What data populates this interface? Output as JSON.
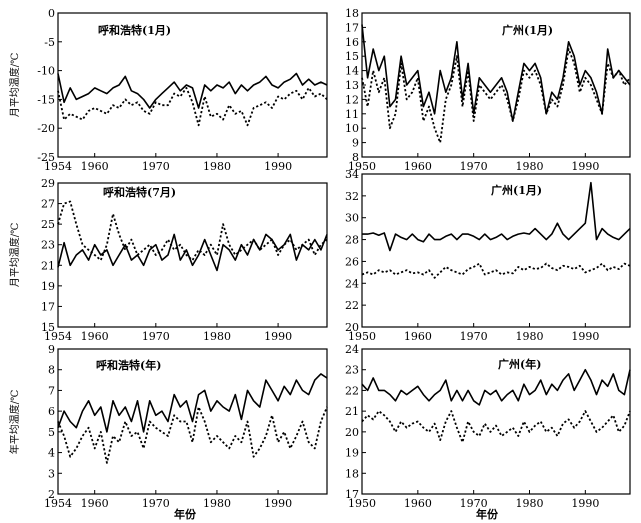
{
  "chart_data": [
    {
      "type": "line",
      "title": "呼和浩特(1月)",
      "ylabel": "月平均温度/℃",
      "ylim": [
        -25,
        0
      ],
      "yticks": [
        "0",
        "-5",
        "-10",
        "-15",
        "-20",
        "-25"
      ],
      "xlim": [
        1954,
        1998
      ],
      "xticks": [
        "1954",
        "1960",
        "1970",
        "1980",
        "1990"
      ],
      "x_start": 1954,
      "series": [
        {
          "name": "solid",
          "style": "solid",
          "values": [
            -10.5,
            -15.5,
            -13.0,
            -15.0,
            -14.5,
            -14.0,
            -13.0,
            -13.5,
            -14.0,
            -13.0,
            -12.5,
            -11.0,
            -13.5,
            -14.0,
            -15.0,
            -16.5,
            -15.0,
            -14.0,
            -13.0,
            -12.0,
            -13.5,
            -12.5,
            -13.0,
            -16.5,
            -12.5,
            -13.5,
            -12.5,
            -13.0,
            -12.0,
            -14.0,
            -12.5,
            -13.5,
            -12.5,
            -12.0,
            -11.0,
            -12.5,
            -13.0,
            -12.0,
            -11.5,
            -10.5,
            -12.5,
            -11.5,
            -12.5,
            -12.0,
            -12.5
          ]
        },
        {
          "name": "dashed",
          "style": "dashed",
          "values": [
            -13.5,
            -18.5,
            -17.5,
            -18.0,
            -18.5,
            -17.0,
            -16.5,
            -17.0,
            -17.5,
            -16.0,
            -16.5,
            -15.0,
            -16.0,
            -15.5,
            -17.0,
            -17.5,
            -15.5,
            -16.0,
            -16.0,
            -14.0,
            -14.5,
            -13.0,
            -15.5,
            -19.5,
            -14.5,
            -18.0,
            -17.5,
            -18.5,
            -16.0,
            -17.5,
            -17.0,
            -19.5,
            -16.5,
            -16.0,
            -15.5,
            -16.5,
            -14.5,
            -15.0,
            -14.0,
            -13.5,
            -15.0,
            -13.0,
            -14.5,
            -14.0,
            -15.0
          ]
        }
      ]
    },
    {
      "type": "line",
      "title": "广州(1月)",
      "ylabel": "",
      "ylim": [
        8,
        18
      ],
      "yticks": [
        "18",
        "17",
        "16",
        "15",
        "14",
        "13",
        "12",
        "11",
        "10",
        "9",
        "8"
      ],
      "xlim": [
        1950,
        1998
      ],
      "xticks": [
        "1950",
        "1960",
        "1970",
        "1980",
        "1990"
      ],
      "x_start": 1950,
      "series": [
        {
          "name": "solid",
          "style": "solid",
          "values": [
            17.2,
            13.5,
            15.5,
            14.0,
            15.0,
            11.5,
            12.0,
            15.0,
            13.0,
            13.5,
            14.0,
            11.5,
            12.5,
            11.0,
            14.0,
            12.5,
            13.5,
            16.0,
            12.0,
            14.5,
            11.0,
            13.5,
            13.0,
            12.5,
            13.0,
            13.5,
            12.5,
            10.5,
            12.5,
            14.5,
            14.0,
            14.5,
            13.5,
            11.0,
            12.5,
            12.0,
            13.5,
            16.0,
            15.0,
            13.0,
            14.0,
            13.5,
            12.5,
            11.0,
            15.5,
            13.5,
            14.0,
            13.5,
            13.0
          ]
        },
        {
          "name": "dashed",
          "style": "dashed",
          "values": [
            13.5,
            11.5,
            14.0,
            12.5,
            13.5,
            10.0,
            11.0,
            14.5,
            12.0,
            12.5,
            13.5,
            10.5,
            11.5,
            10.0,
            9.0,
            12.0,
            13.0,
            15.0,
            11.5,
            14.0,
            10.5,
            13.0,
            12.5,
            12.0,
            12.5,
            13.0,
            12.0,
            10.5,
            12.0,
            14.0,
            13.5,
            14.0,
            13.0,
            11.0,
            12.0,
            11.5,
            13.0,
            15.5,
            14.5,
            12.5,
            13.5,
            13.0,
            12.0,
            11.0,
            14.5,
            13.5,
            14.0,
            13.0,
            13.5
          ]
        }
      ]
    },
    {
      "type": "line",
      "title": "呼和浩特(7月)",
      "ylabel": "月平均温度/℃",
      "ylim": [
        15,
        29
      ],
      "yticks": [
        "29",
        "27",
        "25",
        "23",
        "21",
        "19",
        "17",
        "15"
      ],
      "xlim": [
        1954,
        1998
      ],
      "xticks": [
        "1954",
        "1960",
        "1970",
        "1980",
        "1990"
      ],
      "x_start": 1954,
      "series": [
        {
          "name": "solid",
          "style": "solid",
          "values": [
            20.8,
            23.2,
            21.0,
            22.0,
            22.5,
            21.5,
            23.0,
            22.0,
            22.5,
            21.0,
            22.0,
            23.0,
            21.5,
            22.0,
            21.0,
            22.5,
            23.0,
            21.5,
            22.0,
            24.0,
            21.5,
            22.5,
            21.0,
            22.0,
            23.5,
            22.0,
            20.5,
            23.0,
            22.5,
            21.5,
            23.0,
            22.0,
            23.5,
            22.5,
            24.0,
            23.5,
            22.5,
            23.0,
            24.0,
            21.5,
            23.0,
            22.5,
            23.5,
            22.5,
            24.0
          ]
        },
        {
          "name": "dashed",
          "style": "dashed",
          "values": [
            25.0,
            27.0,
            27.2,
            25.0,
            23.0,
            22.5,
            22.0,
            21.5,
            23.0,
            26.0,
            24.0,
            22.5,
            23.5,
            22.0,
            22.5,
            23.0,
            22.0,
            22.5,
            23.5,
            22.5,
            23.0,
            22.0,
            21.5,
            22.5,
            22.0,
            23.0,
            22.0,
            25.0,
            23.0,
            22.0,
            22.5,
            23.0,
            23.5,
            22.5,
            23.0,
            23.5,
            22.0,
            23.0,
            23.5,
            22.5,
            23.0,
            23.5,
            22.0,
            23.0,
            23.5
          ]
        }
      ]
    },
    {
      "type": "line",
      "title": "广州(1月)",
      "ylabel": "",
      "ylim": [
        20,
        34
      ],
      "yticks": [
        "34",
        "32",
        "30",
        "28",
        "26",
        "24",
        "22",
        "20"
      ],
      "xlim": [
        1950,
        1998
      ],
      "xticks": [
        "1950",
        "1960",
        "1970",
        "1980",
        "1990"
      ],
      "x_start": 1950,
      "series": [
        {
          "name": "solid",
          "style": "solid",
          "values": [
            28.5,
            28.5,
            28.6,
            28.4,
            28.6,
            27.0,
            28.5,
            28.2,
            28.0,
            28.5,
            28.0,
            27.8,
            28.5,
            28.0,
            28.0,
            28.3,
            28.5,
            28.0,
            28.5,
            28.5,
            28.3,
            28.0,
            28.5,
            28.0,
            28.2,
            28.5,
            28.0,
            28.3,
            28.5,
            28.6,
            28.5,
            29.0,
            28.5,
            28.0,
            28.5,
            29.5,
            28.5,
            28.0,
            28.5,
            29.0,
            29.5,
            33.2,
            28.0,
            29.0,
            28.5,
            28.2,
            28.0,
            28.5,
            29.0
          ]
        },
        {
          "name": "dashed",
          "style": "dashed",
          "values": [
            24.8,
            25.0,
            24.8,
            25.2,
            25.0,
            25.2,
            24.8,
            25.0,
            25.2,
            24.9,
            25.0,
            24.8,
            25.2,
            24.5,
            25.0,
            25.5,
            25.2,
            25.0,
            24.8,
            25.3,
            25.5,
            25.8,
            24.8,
            25.0,
            25.2,
            24.8,
            25.0,
            24.9,
            25.5,
            25.2,
            25.5,
            25.3,
            25.4,
            25.8,
            25.4,
            25.2,
            25.6,
            25.5,
            25.3,
            25.6,
            25.0,
            25.2,
            25.4,
            25.8,
            25.2,
            25.5,
            25.3,
            25.8,
            25.6
          ]
        }
      ]
    },
    {
      "type": "line",
      "title": "呼和浩特(年)",
      "ylabel": "年平均温度/℃",
      "xlabel": "年份",
      "ylim": [
        2,
        9
      ],
      "yticks": [
        "9",
        "8",
        "7",
        "6",
        "5",
        "4",
        "3",
        "2"
      ],
      "xlim": [
        1954,
        1998
      ],
      "xticks": [
        "1954",
        "1960",
        "1970",
        "1980",
        "1990"
      ],
      "x_start": 1954,
      "series": [
        {
          "name": "solid",
          "style": "solid",
          "values": [
            5.2,
            6.0,
            5.5,
            5.2,
            6.0,
            6.5,
            5.8,
            6.2,
            5.0,
            6.5,
            5.8,
            6.2,
            5.5,
            6.5,
            5.0,
            6.5,
            5.8,
            6.0,
            5.5,
            6.8,
            6.2,
            6.5,
            5.5,
            6.8,
            7.0,
            6.0,
            6.5,
            6.2,
            6.0,
            6.8,
            5.6,
            7.0,
            6.5,
            6.2,
            7.5,
            7.0,
            6.5,
            7.2,
            6.8,
            7.5,
            7.0,
            6.8,
            7.5,
            7.8,
            7.6
          ]
        },
        {
          "name": "dashed",
          "style": "dashed",
          "values": [
            5.5,
            4.8,
            3.8,
            4.2,
            4.8,
            5.2,
            4.2,
            5.0,
            3.5,
            4.8,
            4.5,
            5.5,
            4.8,
            5.0,
            4.2,
            5.5,
            5.2,
            5.0,
            4.8,
            5.8,
            5.5,
            5.5,
            4.5,
            6.2,
            5.5,
            4.5,
            4.8,
            4.5,
            4.2,
            4.8,
            4.5,
            5.5,
            3.8,
            4.2,
            4.8,
            5.8,
            4.5,
            5.0,
            4.2,
            4.8,
            5.5,
            4.5,
            4.2,
            5.5,
            6.2
          ]
        }
      ]
    },
    {
      "type": "line",
      "title": "广州(年)",
      "ylabel": "",
      "xlabel": "年份",
      "ylim": [
        17,
        24
      ],
      "yticks": [
        "24",
        "23",
        "22",
        "21",
        "20",
        "19",
        "18",
        "17"
      ],
      "xlim": [
        1950,
        1998
      ],
      "xticks": [
        "1950",
        "1960",
        "1970",
        "1980",
        "1990"
      ],
      "x_start": 1950,
      "series": [
        {
          "name": "solid",
          "style": "solid",
          "values": [
            22.3,
            22.0,
            22.6,
            22.0,
            22.0,
            21.8,
            21.5,
            22.0,
            21.8,
            22.0,
            22.2,
            21.8,
            21.5,
            21.8,
            22.0,
            22.5,
            21.5,
            22.0,
            21.5,
            22.0,
            21.5,
            21.3,
            22.0,
            21.8,
            22.0,
            21.5,
            21.8,
            22.0,
            21.5,
            22.3,
            21.8,
            22.0,
            22.5,
            21.8,
            22.3,
            22.0,
            22.5,
            22.8,
            22.0,
            22.5,
            23.0,
            22.5,
            21.8,
            22.5,
            22.2,
            22.8,
            22.0,
            21.8,
            23.0
          ]
        },
        {
          "name": "dashed",
          "style": "dashed",
          "values": [
            20.5,
            20.8,
            20.6,
            21.0,
            20.8,
            20.5,
            20.0,
            20.5,
            20.2,
            20.4,
            20.5,
            20.2,
            20.0,
            20.4,
            19.6,
            20.5,
            21.0,
            20.2,
            19.5,
            20.5,
            20.0,
            19.8,
            20.4,
            20.0,
            20.3,
            19.8,
            20.0,
            20.2,
            19.8,
            20.5,
            20.0,
            20.3,
            20.5,
            20.0,
            20.2,
            19.8,
            20.4,
            20.6,
            20.2,
            20.5,
            21.0,
            20.5,
            20.0,
            20.2,
            20.5,
            20.8,
            20.0,
            20.3,
            21.0
          ]
        }
      ]
    }
  ]
}
